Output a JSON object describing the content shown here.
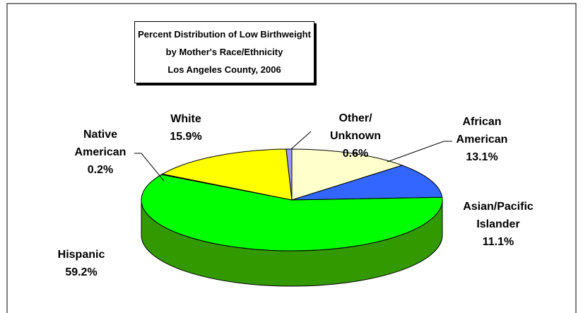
{
  "chart_data": {
    "type": "pie3d",
    "title": "Percent Distribution of Low Birthweight by Mother's Race/Ethnicity",
    "subtitle": "Los Angeles County, 2006",
    "categories": [
      "African American",
      "Asian/Pacific Islander",
      "Hispanic",
      "Native American",
      "White",
      "Other/Unknown"
    ],
    "values": [
      13.1,
      11.1,
      59.2,
      0.2,
      15.9,
      0.6
    ],
    "value_labels": [
      "13.1%",
      "11.1%",
      "59.2%",
      "0.2%",
      "15.9%",
      "0.6%"
    ],
    "colors": [
      "#ffffcc",
      "#3366ff",
      "#00ff00",
      "#cc99ff",
      "#ffff00",
      "#9999ff"
    ],
    "side_colors": [
      "#99997a",
      "#1f3d99",
      "#339900",
      "#7a5c99",
      "#999900",
      "#5c5c99"
    ]
  }
}
